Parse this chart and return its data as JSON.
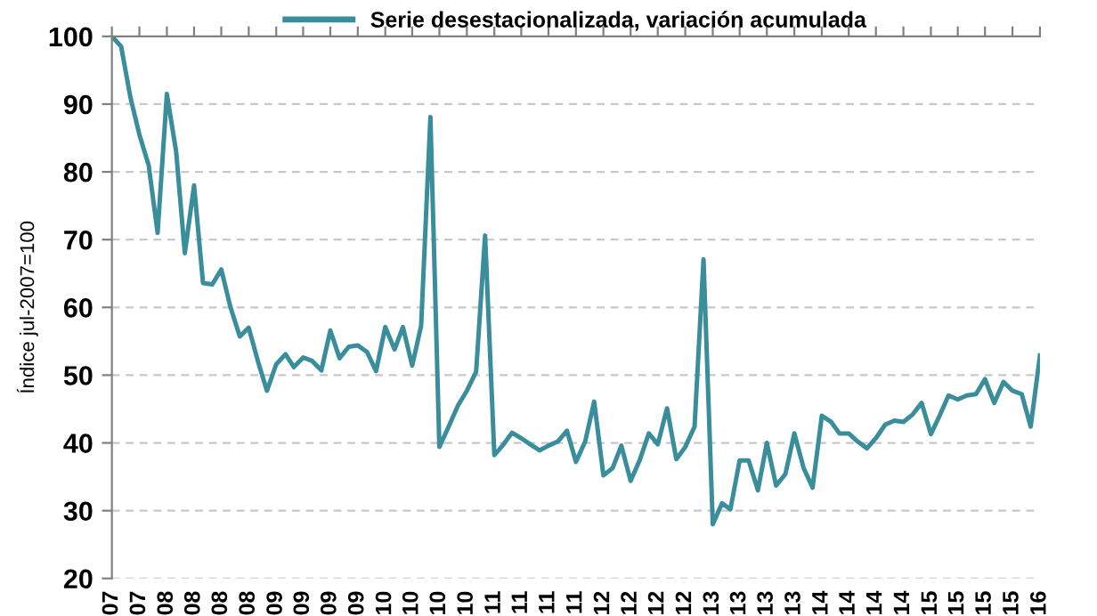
{
  "chart_data": {
    "type": "line",
    "ylabel": "Índice jul-2007=100",
    "legend": "top",
    "x": [
      "2007-07",
      "2007-08",
      "2007-09",
      "2007-10",
      "2007-11",
      "2007-12",
      "2008-01",
      "2008-02",
      "2008-03",
      "2008-04",
      "2008-05",
      "2008-06",
      "2008-07",
      "2008-08",
      "2008-09",
      "2008-10",
      "2008-11",
      "2008-12",
      "2009-01",
      "2009-02",
      "2009-03",
      "2009-04",
      "2009-05",
      "2009-06",
      "2009-07",
      "2009-08",
      "2009-09",
      "2009-10",
      "2009-11",
      "2009-12",
      "2010-01",
      "2010-02",
      "2010-03",
      "2010-04",
      "2010-05",
      "2010-06",
      "2010-07",
      "2010-08",
      "2010-09",
      "2010-10",
      "2010-11",
      "2010-12",
      "2011-01",
      "2011-02",
      "2011-03",
      "2011-04",
      "2011-05",
      "2011-06",
      "2011-07",
      "2011-08",
      "2011-09",
      "2011-10",
      "2011-11",
      "2011-12",
      "2012-01",
      "2012-02",
      "2012-03",
      "2012-04",
      "2012-05",
      "2012-06",
      "2012-07",
      "2012-08",
      "2012-09",
      "2012-10",
      "2012-11",
      "2012-12",
      "2013-01",
      "2013-02",
      "2013-03",
      "2013-04",
      "2013-05",
      "2013-06",
      "2013-07",
      "2013-08",
      "2013-09",
      "2013-10",
      "2013-11",
      "2013-12",
      "2014-01",
      "2014-02",
      "2014-03",
      "2014-04",
      "2014-05",
      "2014-06",
      "2014-07",
      "2014-08",
      "2014-09",
      "2014-10",
      "2014-11",
      "2014-12",
      "2015-01",
      "2015-02",
      "2015-03",
      "2015-04",
      "2015-05",
      "2015-06",
      "2015-07",
      "2015-08",
      "2015-09",
      "2015-10",
      "2015-11",
      "2015-12",
      "2016-01"
    ],
    "series": [
      {
        "name": "Serie desestacionalizada, variación acumulada",
        "color": "#3a8d9b",
        "values": [
          100,
          98.5,
          91,
          85.5,
          81,
          71,
          91.5,
          83,
          68,
          78,
          63.6,
          63.4,
          65.6,
          60,
          55.7,
          57,
          52,
          47.7,
          51.6,
          53.1,
          51.2,
          52.6,
          52.1,
          50.7,
          56.6,
          52.5,
          54.2,
          54.4,
          53.4,
          50.6,
          57.1,
          53.8,
          57.1,
          51.4,
          57.3,
          88.1,
          39.4,
          42.4,
          45.5,
          47.7,
          50.5,
          70.6,
          38.2,
          39.8,
          41.5,
          40.7,
          39.8,
          38.9,
          39.6,
          40.2,
          41.8,
          37.2,
          40.2,
          46.1,
          35.2,
          36.3,
          39.6,
          34.4,
          37.4,
          41.4,
          39.8,
          45.1,
          37.6,
          39.4,
          42.4,
          67.1,
          28,
          31.1,
          30.2,
          37.4,
          37.4,
          33,
          40,
          33.7,
          35.4,
          41.4,
          36.3,
          33.4,
          44,
          43.1,
          41.4,
          41.4,
          40.2,
          39.2,
          40.7,
          42.7,
          43.3,
          43.1,
          44.2,
          45.9,
          41.3,
          44.2,
          47,
          46.4,
          47,
          47.2,
          49.4,
          45.9,
          49,
          47.7,
          47.2,
          42.4,
          52.9
        ]
      }
    ],
    "xlim": [
      "2007-07",
      "2016-01"
    ],
    "xticks": [
      {
        "value": "2007-07",
        "label": "07"
      },
      {
        "value": "2007-10",
        "label": "07"
      },
      {
        "value": "2008-01",
        "label": "08"
      },
      {
        "value": "2008-04",
        "label": "08"
      },
      {
        "value": "2008-07",
        "label": "08"
      },
      {
        "value": "2008-10",
        "label": "08"
      },
      {
        "value": "2009-01",
        "label": "09"
      },
      {
        "value": "2009-04",
        "label": "09"
      },
      {
        "value": "2009-07",
        "label": "09"
      },
      {
        "value": "2009-10",
        "label": "09"
      },
      {
        "value": "2010-01",
        "label": "10"
      },
      {
        "value": "2010-04",
        "label": "10"
      },
      {
        "value": "2010-07",
        "label": "10"
      },
      {
        "value": "2010-10",
        "label": "10"
      },
      {
        "value": "2011-01",
        "label": "11"
      },
      {
        "value": "2011-04",
        "label": "11"
      },
      {
        "value": "2011-07",
        "label": "11"
      },
      {
        "value": "2011-10",
        "label": "11"
      },
      {
        "value": "2012-01",
        "label": "12"
      },
      {
        "value": "2012-04",
        "label": "12"
      },
      {
        "value": "2012-07",
        "label": "12"
      },
      {
        "value": "2012-10",
        "label": "12"
      },
      {
        "value": "2013-01",
        "label": "13"
      },
      {
        "value": "2013-04",
        "label": "13"
      },
      {
        "value": "2013-07",
        "label": "13"
      },
      {
        "value": "2013-10",
        "label": "13"
      },
      {
        "value": "2014-01",
        "label": "14"
      },
      {
        "value": "2014-04",
        "label": "14"
      },
      {
        "value": "2014-07",
        "label": "14"
      },
      {
        "value": "2014-10",
        "label": "14"
      },
      {
        "value": "2015-01",
        "label": "15"
      },
      {
        "value": "2015-04",
        "label": "15"
      },
      {
        "value": "2015-07",
        "label": "15"
      },
      {
        "value": "2015-10",
        "label": "15"
      },
      {
        "value": "2016-01",
        "label": "16"
      }
    ],
    "ylim": [
      20,
      100
    ],
    "yticks": [
      20,
      30,
      40,
      50,
      60,
      70,
      80,
      90,
      100
    ],
    "grid": "y",
    "line_style": "solid"
  }
}
